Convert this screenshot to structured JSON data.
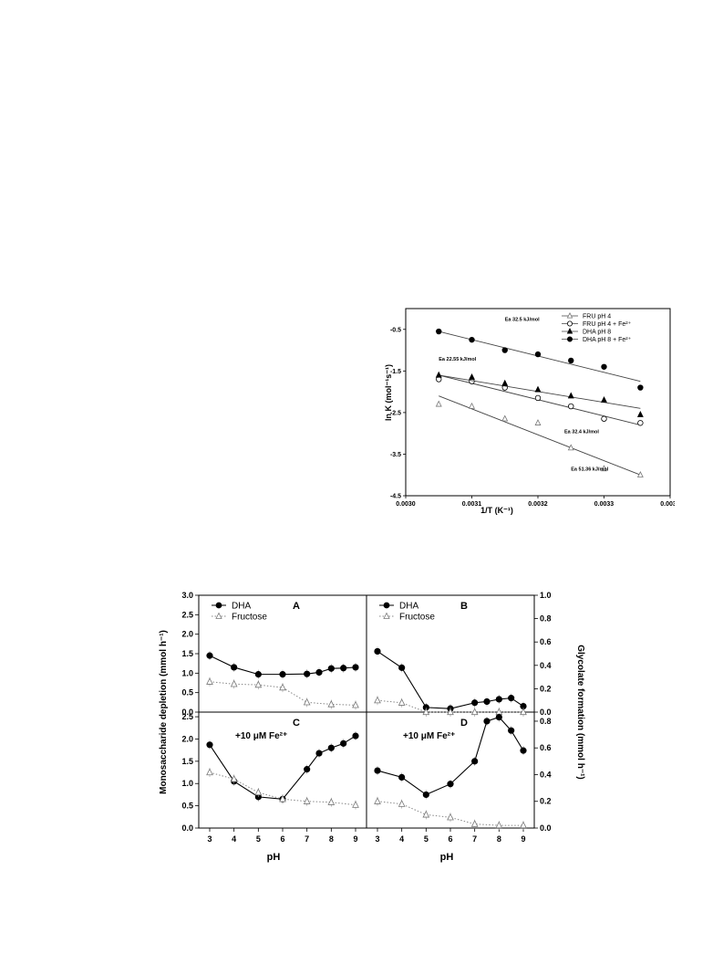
{
  "chart_data": [
    {
      "type": "scatter",
      "xlabel": "1/T (K⁻¹)",
      "ylabel": "ln K (mol⁻¹s⁻¹)",
      "xlim": [
        0.003,
        0.0034
      ],
      "ylim": [
        -4.5,
        0
      ],
      "xticks": [
        "0.0030",
        "0.0031",
        "0.0032",
        "0.0033",
        "0.0034"
      ],
      "yticks": [
        "-0.5",
        "-1.5",
        "-2.5",
        "-3.5",
        "-4.5"
      ],
      "legend_position": "top-right",
      "series": [
        {
          "name": "FRU pH 4",
          "marker": "open-triangle",
          "x": [
            0.00305,
            0.0031,
            0.00315,
            0.0032,
            0.00325,
            0.0033,
            0.003355
          ],
          "y": [
            -2.3,
            -2.35,
            -2.65,
            -2.75,
            -3.35,
            -3.85,
            -4.0
          ],
          "fit": [
            [
              0.00305,
              -2.1
            ],
            [
              0.003355,
              -4.0
            ]
          ]
        },
        {
          "name": "FRU pH 4 + Fe²⁺",
          "marker": "open-circle",
          "x": [
            0.00305,
            0.0031,
            0.00315,
            0.0032,
            0.00325,
            0.0033,
            0.003355
          ],
          "y": [
            -1.7,
            -1.75,
            -1.9,
            -2.15,
            -2.35,
            -2.65,
            -2.75
          ],
          "fit": [
            [
              0.00305,
              -1.6
            ],
            [
              0.003355,
              -2.8
            ]
          ]
        },
        {
          "name": "DHA pH 8",
          "marker": "filled-triangle",
          "x": [
            0.00305,
            0.0031,
            0.00315,
            0.0032,
            0.00325,
            0.0033,
            0.003355
          ],
          "y": [
            -1.6,
            -1.65,
            -1.8,
            -1.95,
            -2.1,
            -2.2,
            -2.55
          ],
          "fit": [
            [
              0.00305,
              -1.6
            ],
            [
              0.003355,
              -2.4
            ]
          ]
        },
        {
          "name": "DHA pH 8 + Fe²⁺",
          "marker": "filled-circle",
          "x": [
            0.00305,
            0.0031,
            0.00315,
            0.0032,
            0.00325,
            0.0033,
            0.003355
          ],
          "y": [
            -0.55,
            -0.75,
            -1.0,
            -1.1,
            -1.25,
            -1.4,
            -1.9
          ],
          "fit": [
            [
              0.00305,
              -0.55
            ],
            [
              0.003355,
              -1.75
            ]
          ]
        }
      ],
      "annotations": [
        {
          "text": "Ea 32.5 kJ/mol",
          "x": 0.00315,
          "y": -0.3
        },
        {
          "text": "Ea 22.55 kJ/mol",
          "x": 0.00305,
          "y": -1.25
        },
        {
          "text": "Ea 32.4 kJ/mol",
          "x": 0.00324,
          "y": -3.0
        },
        {
          "text": "Ea 51.36 kJ/mol",
          "x": 0.00325,
          "y": -3.9
        }
      ]
    },
    {
      "type": "line",
      "xlabel": "pH",
      "ylabel_left": "Monosaccharide depletion (mmol h⁻¹)",
      "ylabel_right": "Glycolate formation (mmol h⁻¹)",
      "x_ticks": [
        "3",
        "4",
        "5",
        "6",
        "7",
        "8",
        "9"
      ],
      "left_ticks_top": [
        "0.0",
        "0.5",
        "1.0",
        "1.5",
        "2.0",
        "2.5",
        "3.0"
      ],
      "left_ticks_bottom": [
        "0.0",
        "0.5",
        "1.0",
        "1.5",
        "2.0",
        "2.5"
      ],
      "right_ticks_top": [
        "0.0",
        "0.2",
        "0.4",
        "0.6",
        "0.8",
        "1.0"
      ],
      "right_ticks_bottom": [
        "0.0",
        "0.2",
        "0.4",
        "0.6",
        "0.8"
      ],
      "panels": [
        {
          "label": "A",
          "ylim": [
            0,
            3.0
          ],
          "legend": [
            "DHA",
            "Fructose"
          ],
          "annotation": "",
          "series": [
            {
              "name": "DHA",
              "style": "solid-filled-circle",
              "x": [
                3,
                4,
                5,
                6,
                7,
                7.5,
                8,
                8.5,
                9
              ],
              "y": [
                1.45,
                1.15,
                0.97,
                0.97,
                0.98,
                1.02,
                1.12,
                1.13,
                1.15
              ]
            },
            {
              "name": "Fructose",
              "style": "dotted-open-triangle",
              "x": [
                3,
                4,
                5,
                6,
                7,
                8,
                9
              ],
              "y": [
                0.78,
                0.72,
                0.7,
                0.63,
                0.25,
                0.2,
                0.18
              ]
            }
          ]
        },
        {
          "label": "B",
          "ylim": [
            0,
            1.0
          ],
          "legend": [
            "DHA",
            "Fructose"
          ],
          "annotation": "",
          "series": [
            {
              "name": "DHA",
              "style": "solid-filled-circle",
              "x": [
                3,
                4,
                5,
                6,
                7,
                7.5,
                8,
                8.5,
                9
              ],
              "y": [
                0.52,
                0.38,
                0.04,
                0.03,
                0.08,
                0.09,
                0.11,
                0.12,
                0.05
              ]
            },
            {
              "name": "Fructose",
              "style": "dotted-open-triangle",
              "x": [
                3,
                4,
                5,
                6,
                7,
                8,
                9
              ],
              "y": [
                0.1,
                0.08,
                0.0,
                0.0,
                0.0,
                0.0,
                0.0
              ]
            }
          ]
        },
        {
          "label": "C",
          "ylim": [
            0,
            2.5
          ],
          "legend": [],
          "annotation": "+10 μM Fe²⁺",
          "series": [
            {
              "name": "DHA",
              "style": "solid-filled-circle",
              "x": [
                3,
                4,
                5,
                6,
                7,
                7.5,
                8,
                8.5,
                9
              ],
              "y": [
                1.87,
                1.05,
                0.7,
                0.65,
                1.32,
                1.68,
                1.8,
                1.9,
                2.07
              ]
            },
            {
              "name": "Fructose",
              "style": "dotted-open-triangle",
              "x": [
                3,
                4,
                5,
                6,
                7,
                8,
                9
              ],
              "y": [
                1.25,
                1.1,
                0.8,
                0.65,
                0.6,
                0.58,
                0.52
              ]
            }
          ]
        },
        {
          "label": "D",
          "ylim": [
            0,
            0.8333
          ],
          "legend": [],
          "annotation": "+10 μM Fe²⁺",
          "series": [
            {
              "name": "DHA",
              "style": "solid-filled-circle",
              "x": [
                3,
                4,
                5,
                6,
                7,
                7.5,
                8,
                8.5,
                9
              ],
              "y": [
                0.43,
                0.38,
                0.25,
                0.33,
                0.5,
                0.8,
                0.83,
                0.73,
                0.58
              ]
            },
            {
              "name": "Fructose",
              "style": "dotted-open-triangle",
              "x": [
                3,
                4,
                5,
                6,
                7,
                8,
                9
              ],
              "y": [
                0.2,
                0.18,
                0.1,
                0.08,
                0.03,
                0.02,
                0.02
              ]
            }
          ]
        }
      ]
    }
  ]
}
